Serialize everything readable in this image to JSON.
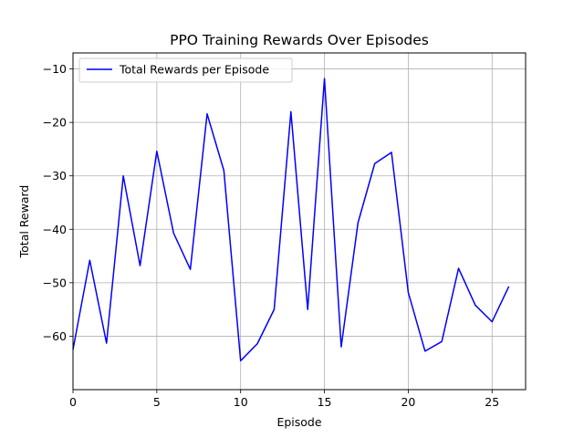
{
  "chart_data": {
    "type": "line",
    "title": "PPO Training Rewards Over Episodes",
    "xlabel": "Episode",
    "ylabel": "Total Reward",
    "xlim": [
      0,
      27
    ],
    "ylim": [
      -70,
      -7
    ],
    "xticks": [
      0,
      5,
      10,
      15,
      20,
      25
    ],
    "yticks": [
      -60,
      -50,
      -40,
      -30,
      -20,
      -10
    ],
    "grid": true,
    "legend_position": "upper-left",
    "series": [
      {
        "name": "Total Rewards per Episode",
        "color": "#0000ff",
        "x": [
          0,
          1,
          2,
          3,
          4,
          5,
          6,
          7,
          8,
          9,
          10,
          11,
          12,
          13,
          14,
          15,
          16,
          17,
          18,
          19,
          20,
          21,
          22,
          23,
          24,
          25,
          26
        ],
        "values": [
          -62.5,
          -45.8,
          -61.3,
          -30.0,
          -46.8,
          -25.4,
          -40.7,
          -47.5,
          -18.4,
          -29.0,
          -64.6,
          -61.4,
          -55.0,
          -18.0,
          -55.0,
          -11.8,
          -62.0,
          -38.8,
          -27.7,
          -25.6,
          -51.8,
          -62.8,
          -61.0,
          -47.3,
          -54.2,
          -57.3,
          -50.7
        ]
      }
    ]
  }
}
